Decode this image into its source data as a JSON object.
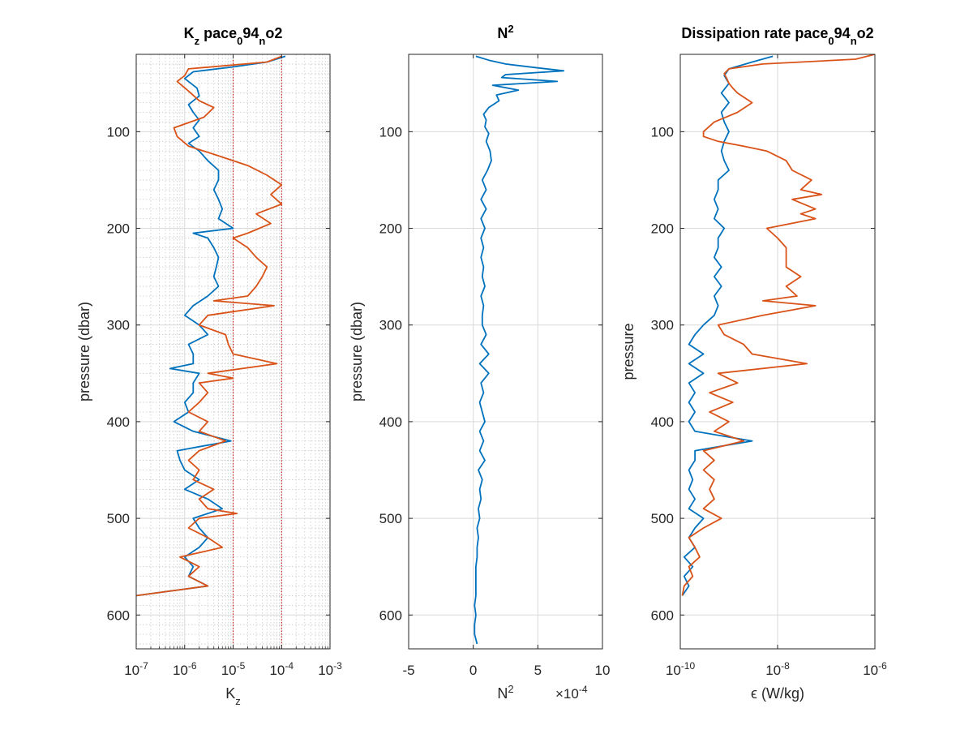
{
  "colors": {
    "blue": "#0072BD",
    "orange": "#D95319",
    "axis": "#262626",
    "grid": "#d9d9d9",
    "refline": "#cc0000"
  },
  "chart_data": [
    {
      "type": "line",
      "title": "K_z pace_0 94_n o2",
      "title_parts": [
        {
          "t": "K",
          "s": "n"
        },
        {
          "t": "z",
          "s": "sub"
        },
        {
          "t": " pace",
          "s": "n"
        },
        {
          "t": "0",
          "s": "sub"
        },
        {
          "t": "94",
          "s": "n"
        },
        {
          "t": "n",
          "s": "sub"
        },
        {
          "t": "o2",
          "s": "n"
        }
      ],
      "xlabel": "K_z",
      "xlabel_parts": [
        {
          "t": "K",
          "s": "n"
        },
        {
          "t": "z",
          "s": "sub"
        }
      ],
      "ylabel": "pressure (dbar)",
      "xscale": "log",
      "xlim": [
        1e-07,
        0.001
      ],
      "ylim": [
        20,
        635
      ],
      "y_reversed": true,
      "xticks": [
        {
          "v": 1e-07,
          "b": "10",
          "e": "-7"
        },
        {
          "v": 1e-06,
          "b": "10",
          "e": "-6"
        },
        {
          "v": 1e-05,
          "b": "10",
          "e": "-5"
        },
        {
          "v": 0.0001,
          "b": "10",
          "e": "-4"
        },
        {
          "v": 0.001,
          "b": "10",
          "e": "-3"
        }
      ],
      "yticks": [
        100,
        200,
        300,
        400,
        500,
        600
      ],
      "ytick_labels": [
        "100",
        "200",
        "300",
        "400",
        "500",
        "600"
      ],
      "grid": "minor",
      "reference_lines_x": [
        1e-05,
        0.0001
      ],
      "series": [
        {
          "color": "blue",
          "y": [
            22,
            28,
            33,
            38,
            45,
            55,
            63,
            72,
            80,
            88,
            96,
            105,
            112,
            120,
            130,
            140,
            150,
            160,
            170,
            180,
            190,
            200,
            205,
            210,
            220,
            230,
            240,
            250,
            260,
            270,
            280,
            290,
            300,
            310,
            320,
            330,
            340,
            345,
            350,
            360,
            370,
            380,
            390,
            400,
            410,
            420,
            430,
            440,
            450,
            460,
            470,
            480,
            490,
            500,
            510,
            520,
            530,
            540,
            550,
            560,
            570,
            580
          ],
          "x": [
            0.00012,
            5e-05,
            1e-05,
            1.5e-06,
            1e-06,
            1.8e-06,
            2e-06,
            1.2e-06,
            1.5e-06,
            2e-06,
            1.5e-06,
            2e-06,
            1.2e-06,
            2e-06,
            3e-06,
            5e-06,
            5e-06,
            4e-06,
            5e-06,
            6e-06,
            5e-06,
            1e-05,
            1.5e-06,
            3e-06,
            4e-06,
            5e-06,
            4.5e-06,
            4e-06,
            5e-06,
            3e-06,
            1.5e-06,
            1e-06,
            2e-06,
            3e-06,
            1.2e-06,
            1.5e-06,
            1.5e-06,
            5e-07,
            2e-06,
            1.5e-06,
            1.5e-06,
            1e-06,
            1.2e-06,
            6e-07,
            1.5e-06,
            9e-06,
            7e-07,
            8e-07,
            1e-06,
            2e-06,
            1e-06,
            3e-06,
            6e-06,
            1.5e-06,
            2e-06,
            3e-06,
            2e-06,
            1e-06,
            1.5e-06,
            1.2e-06,
            3e-06,
            1e-07
          ]
        },
        {
          "color": "orange",
          "y": [
            22,
            28,
            35,
            42,
            48,
            58,
            68,
            75,
            85,
            96,
            105,
            115,
            125,
            135,
            145,
            155,
            165,
            175,
            185,
            195,
            205,
            210,
            220,
            230,
            240,
            250,
            260,
            270,
            275,
            280,
            290,
            300,
            310,
            320,
            330,
            340,
            350,
            355,
            360,
            370,
            380,
            390,
            400,
            410,
            420,
            430,
            440,
            450,
            460,
            470,
            480,
            490,
            495,
            500,
            510,
            520,
            530,
            540,
            550,
            560,
            570,
            580
          ],
          "x": [
            0.0001,
            5e-05,
            1.2e-06,
            1e-06,
            7e-07,
            1.2e-06,
            2e-06,
            4e-06,
            2.5e-06,
            6e-07,
            7e-07,
            1.2e-06,
            5e-06,
            2e-05,
            5e-05,
            0.0001,
            6e-05,
            0.0001,
            3e-05,
            6e-05,
            2e-05,
            1e-05,
            2e-05,
            3e-05,
            5e-05,
            4e-05,
            3e-05,
            2e-05,
            4e-06,
            7e-05,
            3e-06,
            2e-06,
            7e-06,
            8e-06,
            1e-05,
            8e-05,
            3e-06,
            1e-05,
            2e-06,
            3e-06,
            2e-06,
            1.2e-06,
            3e-06,
            2e-06,
            7e-06,
            2e-06,
            1.2e-06,
            2e-06,
            1.5e-06,
            4e-06,
            2e-06,
            3e-06,
            1.2e-05,
            2e-06,
            1.2e-06,
            3e-06,
            6e-06,
            8e-07,
            2e-06,
            1.2e-06,
            3e-06,
            1e-07
          ]
        }
      ]
    },
    {
      "type": "line",
      "title": "N^2",
      "title_parts": [
        {
          "t": "N",
          "s": "n"
        },
        {
          "t": "2",
          "s": "sup"
        }
      ],
      "xlabel": "N^2",
      "xlabel_parts": [
        {
          "t": "N",
          "s": "n"
        },
        {
          "t": "2",
          "s": "sup"
        }
      ],
      "ylabel": "pressure (dbar)",
      "xscale": "linear",
      "xlim": [
        -5,
        10
      ],
      "ylim": [
        20,
        635
      ],
      "y_reversed": true,
      "xticks": [
        {
          "v": -5,
          "b": "-5"
        },
        {
          "v": 0,
          "b": "0"
        },
        {
          "v": 5,
          "b": "5"
        },
        {
          "v": 10,
          "b": "10"
        }
      ],
      "x_exponent_label": "×10",
      "x_exponent": "-4",
      "yticks": [
        100,
        200,
        300,
        400,
        500,
        600
      ],
      "ytick_labels": [
        "100",
        "200",
        "300",
        "400",
        "500",
        "600"
      ],
      "grid": "major",
      "series": [
        {
          "color": "blue",
          "y": [
            22,
            26,
            30,
            34,
            37,
            41,
            44,
            48,
            52,
            57,
            62,
            68,
            75,
            82,
            88,
            95,
            102,
            110,
            120,
            130,
            140,
            150,
            160,
            170,
            180,
            190,
            200,
            210,
            220,
            230,
            240,
            250,
            260,
            270,
            280,
            290,
            300,
            310,
            320,
            330,
            340,
            350,
            360,
            370,
            380,
            390,
            400,
            410,
            420,
            430,
            440,
            450,
            460,
            470,
            480,
            490,
            500,
            510,
            520,
            530,
            540,
            550,
            560,
            570,
            580,
            590,
            600,
            610,
            620,
            630
          ],
          "x": [
            0.2,
            1.2,
            2.5,
            5,
            7,
            2.5,
            2.2,
            6.5,
            1.5,
            3.5,
            1.8,
            2,
            1.2,
            0.8,
            1,
            0.9,
            1.2,
            1,
            1.3,
            1.4,
            1.1,
            0.7,
            1,
            0.6,
            1,
            0.6,
            0.9,
            0.6,
            0.8,
            0.6,
            0.8,
            0.7,
            0.9,
            0.6,
            0.8,
            0.7,
            0.7,
            1,
            0.6,
            1.2,
            0.5,
            1.2,
            0.6,
            0.8,
            0.5,
            0.7,
            0.9,
            0.5,
            0.8,
            0.5,
            0.9,
            0.4,
            0.7,
            0.5,
            0.6,
            0.4,
            0.5,
            0.3,
            0.4,
            0.3,
            0.3,
            0.2,
            0.2,
            0.2,
            0.2,
            0.1,
            0.2,
            0.1,
            0.1,
            0.3
          ]
        }
      ]
    },
    {
      "type": "line",
      "title": "Dissipation rate pace_0 94_n o2",
      "title_parts": [
        {
          "t": "Dissipation rate pace",
          "s": "n"
        },
        {
          "t": "0",
          "s": "sub"
        },
        {
          "t": "94",
          "s": "n"
        },
        {
          "t": "n",
          "s": "sub"
        },
        {
          "t": "o2",
          "s": "n"
        }
      ],
      "xlabel": "ϵ (W/kg)",
      "xlabel_parts": [
        {
          "t": "ϵ (W/kg)",
          "s": "n"
        }
      ],
      "ylabel": "pressure",
      "xscale": "log",
      "xlim": [
        1e-10,
        1e-06
      ],
      "ylim": [
        20,
        635
      ],
      "y_reversed": true,
      "xticks": [
        {
          "v": 1e-10,
          "b": "10",
          "e": "-10"
        },
        {
          "v": 1e-08,
          "b": "10",
          "e": "-8"
        },
        {
          "v": 1e-06,
          "b": "10",
          "e": "-6"
        }
      ],
      "yticks": [
        100,
        200,
        300,
        400,
        500,
        600
      ],
      "ytick_labels": [
        "100",
        "200",
        "300",
        "400",
        "500",
        "600"
      ],
      "grid": "major",
      "series": [
        {
          "color": "blue",
          "y": [
            22,
            28,
            35,
            42,
            50,
            60,
            70,
            80,
            90,
            100,
            110,
            120,
            130,
            140,
            150,
            160,
            170,
            180,
            190,
            200,
            210,
            220,
            230,
            240,
            250,
            260,
            270,
            280,
            290,
            300,
            310,
            320,
            330,
            340,
            350,
            360,
            370,
            380,
            390,
            400,
            410,
            420,
            430,
            440,
            450,
            460,
            470,
            480,
            490,
            500,
            510,
            520,
            530,
            540,
            550,
            560,
            570,
            580
          ],
          "x": [
            8e-09,
            3e-09,
            1e-09,
            8e-10,
            1e-09,
            7e-10,
            1e-09,
            7e-10,
            8e-10,
            1e-09,
            8e-10,
            7e-10,
            8e-10,
            1e-09,
            6e-10,
            6e-10,
            5e-10,
            6e-10,
            5e-10,
            8e-10,
            6e-10,
            6e-10,
            5e-10,
            7e-10,
            5e-10,
            7e-10,
            5e-10,
            6e-10,
            5e-10,
            3e-10,
            2e-10,
            1.5e-10,
            3e-10,
            1.5e-10,
            3e-10,
            1.5e-10,
            2e-10,
            1.5e-10,
            2e-10,
            1.5e-10,
            2e-10,
            3e-09,
            2e-10,
            2e-10,
            1.5e-10,
            1.8e-10,
            1.5e-10,
            2e-10,
            1.5e-10,
            3e-10,
            2e-10,
            1.5e-10,
            2e-10,
            1.2e-10,
            1.8e-10,
            1.2e-10,
            1.5e-10,
            1.1e-10
          ]
        },
        {
          "color": "orange",
          "y": [
            20,
            25,
            30,
            35,
            40,
            45,
            50,
            55,
            60,
            70,
            80,
            90,
            100,
            105,
            110,
            115,
            120,
            130,
            140,
            150,
            160,
            165,
            170,
            180,
            185,
            190,
            200,
            210,
            220,
            230,
            240,
            250,
            260,
            270,
            275,
            280,
            290,
            300,
            310,
            320,
            330,
            340,
            350,
            360,
            370,
            380,
            390,
            400,
            410,
            420,
            430,
            440,
            450,
            460,
            470,
            480,
            490,
            500,
            510,
            520,
            530,
            540,
            550,
            560,
            570,
            580
          ],
          "x": [
            1e-06,
            4e-07,
            5e-09,
            1e-09,
            8e-10,
            9e-10,
            1e-09,
            1.2e-09,
            1.5e-09,
            3e-09,
            1.5e-09,
            5e-10,
            3e-10,
            3e-10,
            6e-10,
            2e-09,
            6e-09,
            1.5e-08,
            2e-08,
            5e-08,
            3e-08,
            8e-08,
            2e-08,
            6e-08,
            3e-08,
            6e-08,
            6e-09,
            1e-08,
            1.5e-08,
            1.5e-08,
            1.5e-08,
            3e-08,
            1.5e-08,
            2.5e-08,
            5e-09,
            6e-08,
            5e-09,
            6e-10,
            8e-10,
            2e-09,
            3e-09,
            4e-08,
            6e-10,
            1.5e-09,
            4e-10,
            1.2e-09,
            4e-10,
            1e-09,
            5e-10,
            2e-09,
            3e-10,
            5e-10,
            3e-10,
            5e-10,
            4e-10,
            5e-10,
            3e-10,
            7e-10,
            3e-10,
            1.5e-10,
            2e-10,
            2.5e-10,
            1.5e-10,
            1.8e-10,
            1.2e-10,
            1.1e-10
          ]
        }
      ]
    }
  ]
}
